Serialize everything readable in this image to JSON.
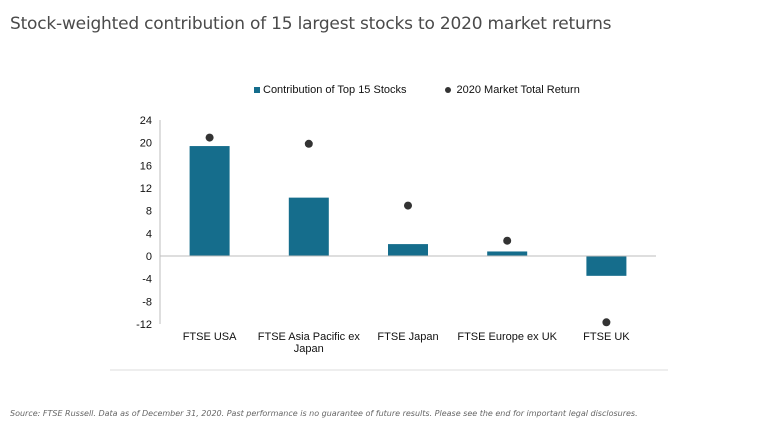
{
  "title": "Stock-weighted contribution of 15 largest stocks to 2020 market returns",
  "source": "Source: FTSE Russell. Data as of December 31, 2020. Past performance is no guarantee of future results. Please see the end for important legal disclosures.",
  "colors": {
    "bar": "#156d8c",
    "dot": "#333333"
  },
  "chart_data": {
    "type": "bar",
    "categories": [
      "FTSE USA",
      "FTSE Asia Pacific ex Japan",
      "FTSE Japan",
      "FTSE Europe ex UK",
      "FTSE UK"
    ],
    "category_lines": [
      [
        "FTSE USA"
      ],
      [
        "FTSE Asia Pacific ex",
        "Japan"
      ],
      [
        "FTSE Japan"
      ],
      [
        "FTSE Europe ex UK"
      ],
      [
        "FTSE UK"
      ]
    ],
    "series": [
      {
        "name": "Contribution of Top 15 Stocks",
        "type": "bar",
        "values": [
          19.4,
          10.3,
          2.1,
          0.8,
          -3.5
        ]
      },
      {
        "name": "2020 Market Total Return",
        "type": "scatter",
        "values": [
          20.9,
          19.8,
          8.9,
          2.7,
          -11.7
        ]
      }
    ],
    "yticks": [
      24,
      20,
      16,
      12,
      8,
      4,
      0,
      -4,
      -8,
      -12
    ],
    "ylim": [
      -12,
      24
    ],
    "legend_position": "top",
    "grid": false
  }
}
